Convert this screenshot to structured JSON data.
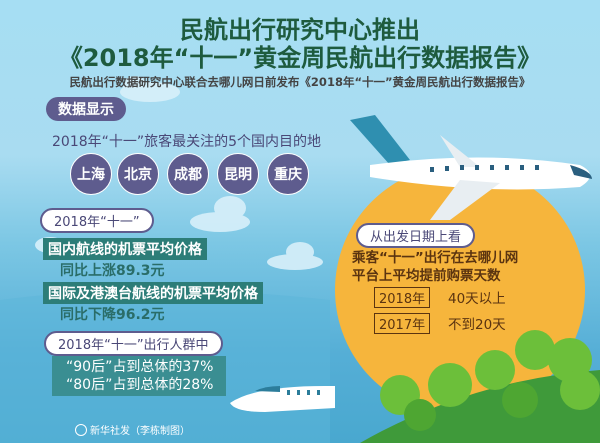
{
  "header": {
    "title_line1": "民航出行研究中心推出",
    "title_line2": "《2018年“十一”黄金周民航出行数据报告》",
    "subtitle": "民航出行数据研究中心联合去哪儿网日前发布《2018年“十一”黄金周民航出行数据报告》"
  },
  "section_tag": "数据显示",
  "destinations": {
    "question": "2018年“十一”旅客最关注的5个国内目的地",
    "cities": [
      "上海",
      "北京",
      "成都",
      "昆明",
      "重庆"
    ]
  },
  "prices": {
    "label": "2018年“十一”",
    "domestic_title": "国内航线的机票平均价格",
    "domestic_change": "同比上涨89.3元",
    "intl_title": "国际及港澳台航线的机票平均价格",
    "intl_change": "同比下降96.2元"
  },
  "travelers": {
    "label": "2018年“十一”出行人群中",
    "line1": "“90后”占到总体的37%",
    "line2": "“80后”占到总体的28%"
  },
  "booking": {
    "label": "从出发日期上看",
    "desc_line1": "乘客“十一”出行在去哪儿网",
    "desc_line2": "平台上平均提前购票天数",
    "rows": [
      {
        "year": "2018年",
        "value": "40天以上"
      },
      {
        "year": "2017年",
        "value": "不到20天"
      }
    ]
  },
  "credit": "新华社发（李栋制图）",
  "colors": {
    "title": "#1e5b3e",
    "purple": "#5e5c8e",
    "teal": "#2c7d78",
    "orange": "#f6b53c",
    "brown": "#5b3410"
  }
}
